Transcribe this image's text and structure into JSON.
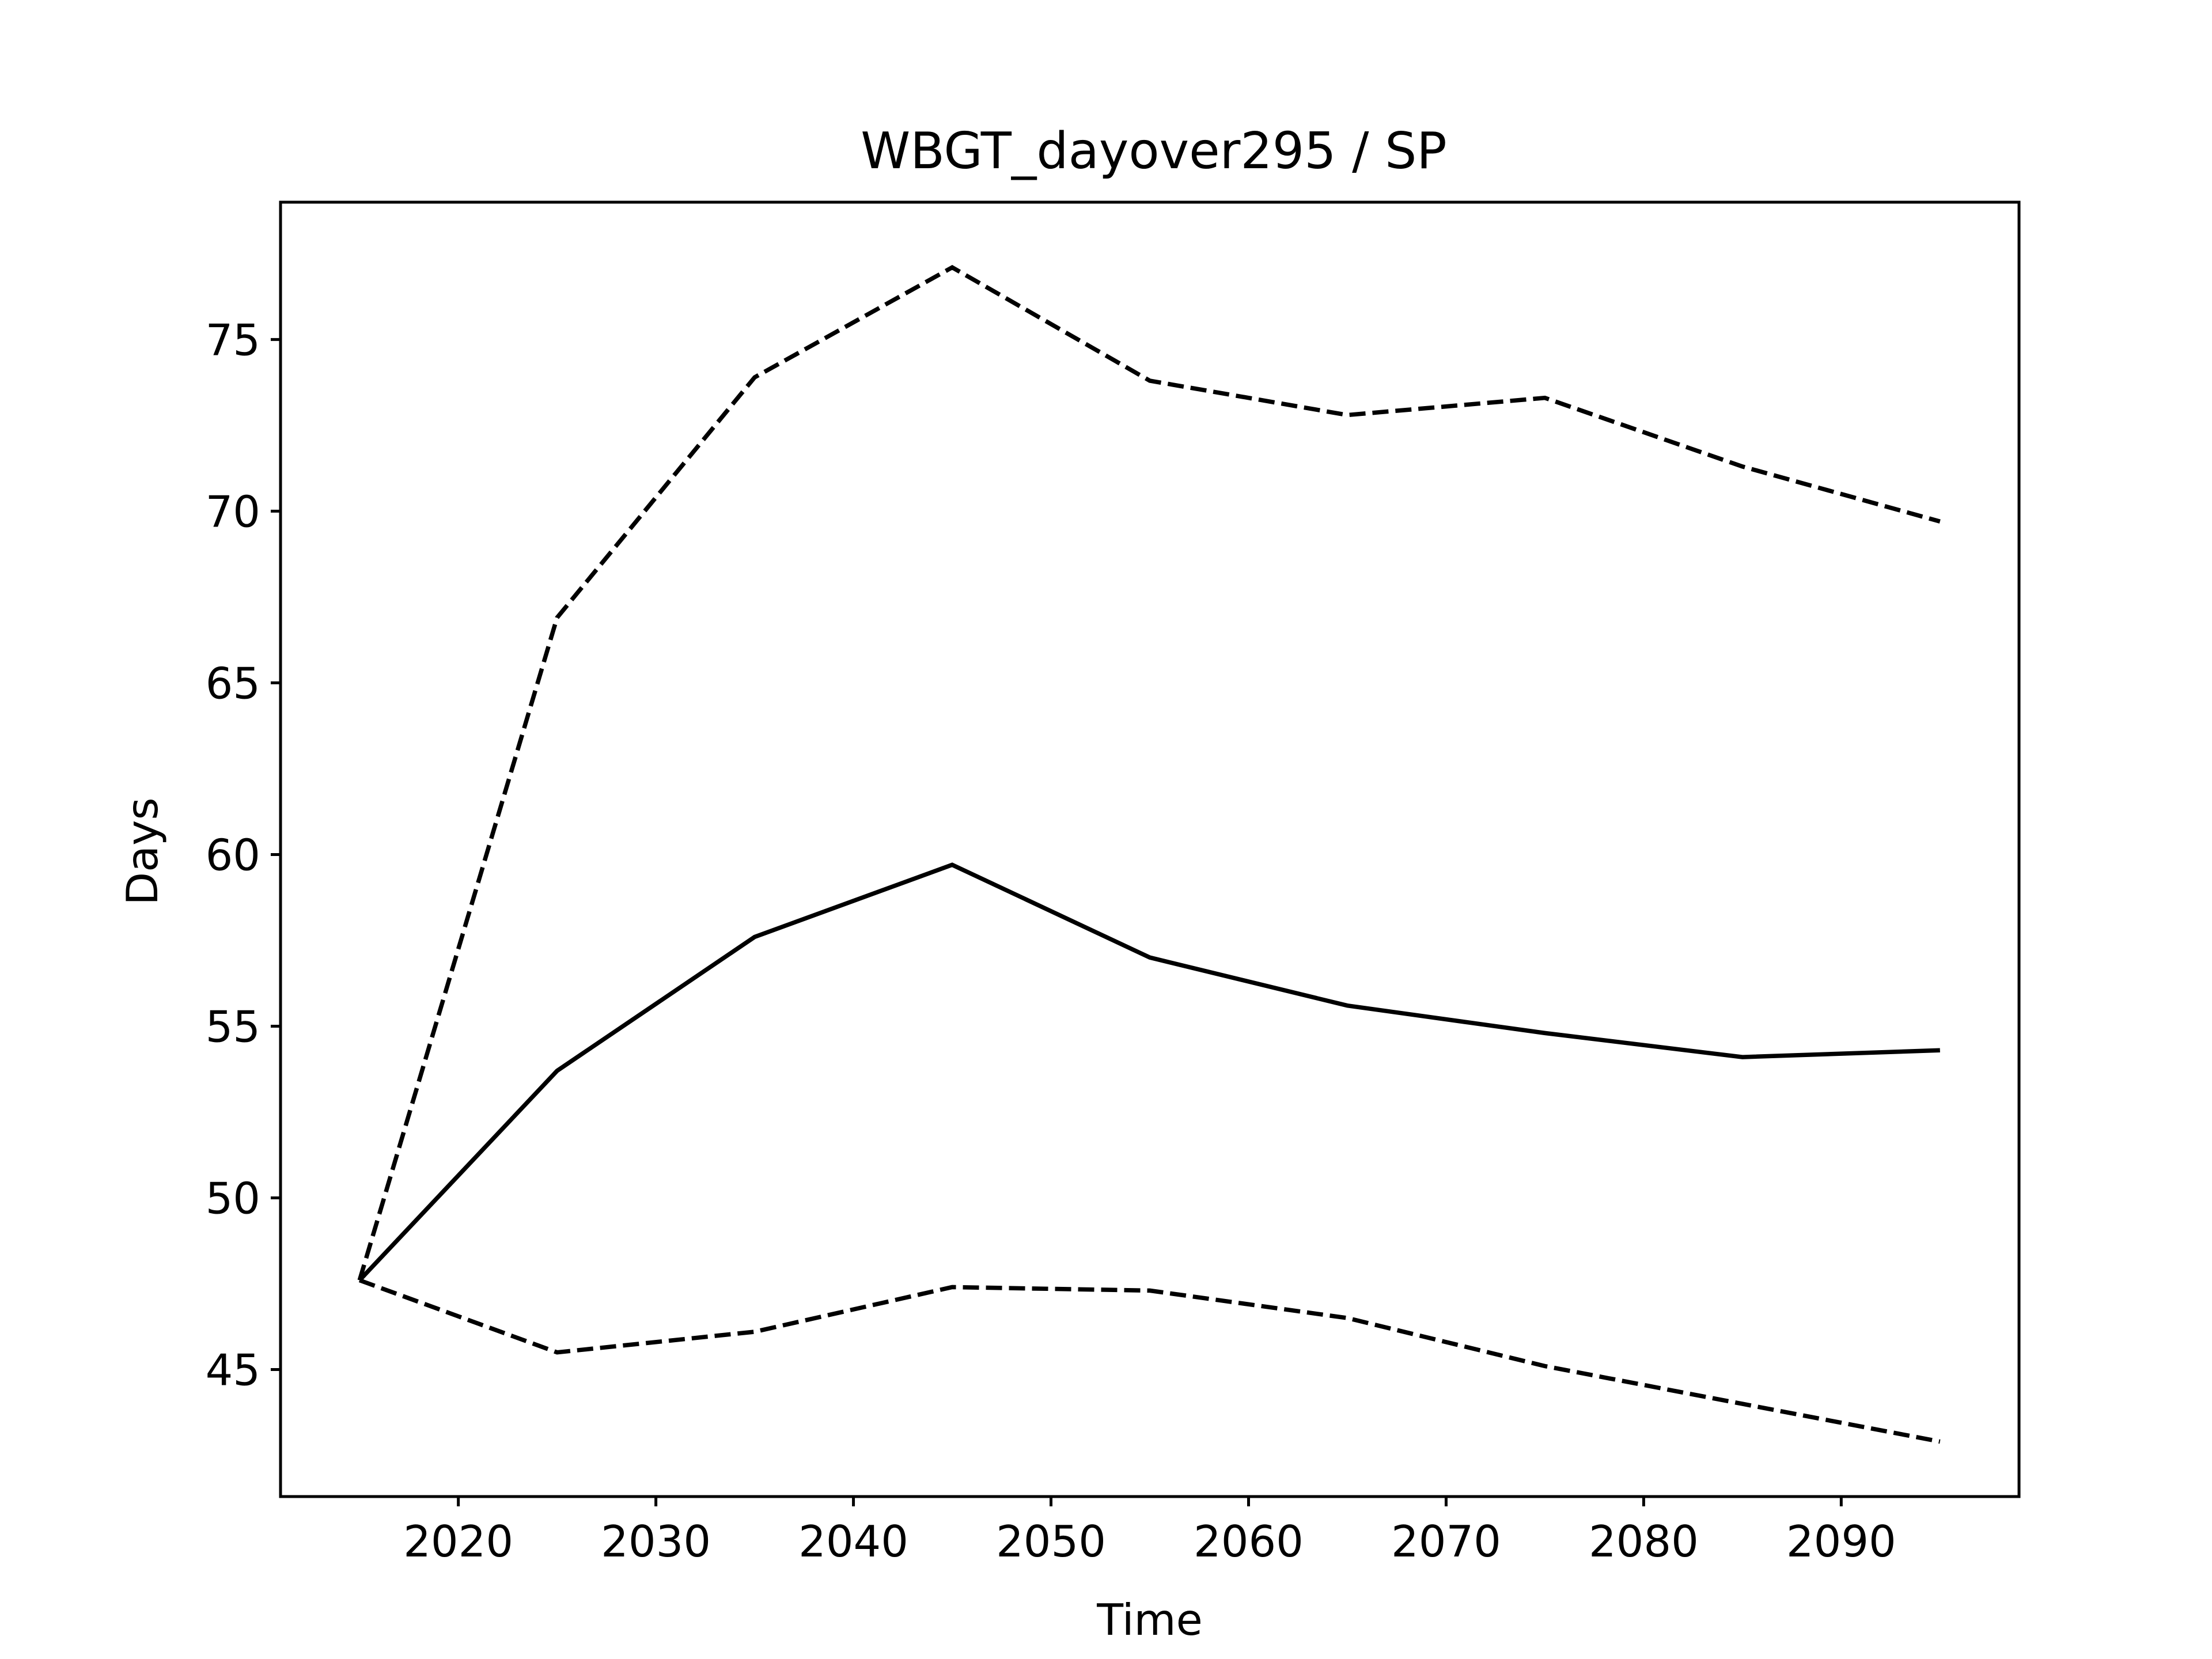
{
  "chart_data": {
    "type": "line",
    "title": "WBGT_dayover295 / SP",
    "xlabel": "Time",
    "ylabel": "Days",
    "xlim": [
      2011,
      2099
    ],
    "ylim": [
      41.3,
      79.0
    ],
    "xticks": [
      2020,
      2030,
      2040,
      2050,
      2060,
      2070,
      2080,
      2090
    ],
    "yticks": [
      45,
      50,
      55,
      60,
      65,
      70,
      75
    ],
    "grid": false,
    "x": [
      2015,
      2025,
      2035,
      2045,
      2055,
      2065,
      2075,
      2085,
      2095
    ],
    "series": [
      {
        "style": "dashed",
        "color": "#000000",
        "values": [
          47.6,
          66.9,
          73.9,
          77.1,
          73.8,
          72.8,
          73.3,
          71.3,
          69.7
        ]
      },
      {
        "style": "solid",
        "color": "#000000",
        "values": [
          47.6,
          53.7,
          57.6,
          59.7,
          57.0,
          55.6,
          54.8,
          54.1,
          54.3
        ]
      },
      {
        "style": "dashed",
        "color": "#000000",
        "values": [
          47.6,
          45.5,
          46.1,
          47.4,
          47.3,
          46.5,
          45.1,
          44.0,
          42.9
        ]
      }
    ]
  }
}
